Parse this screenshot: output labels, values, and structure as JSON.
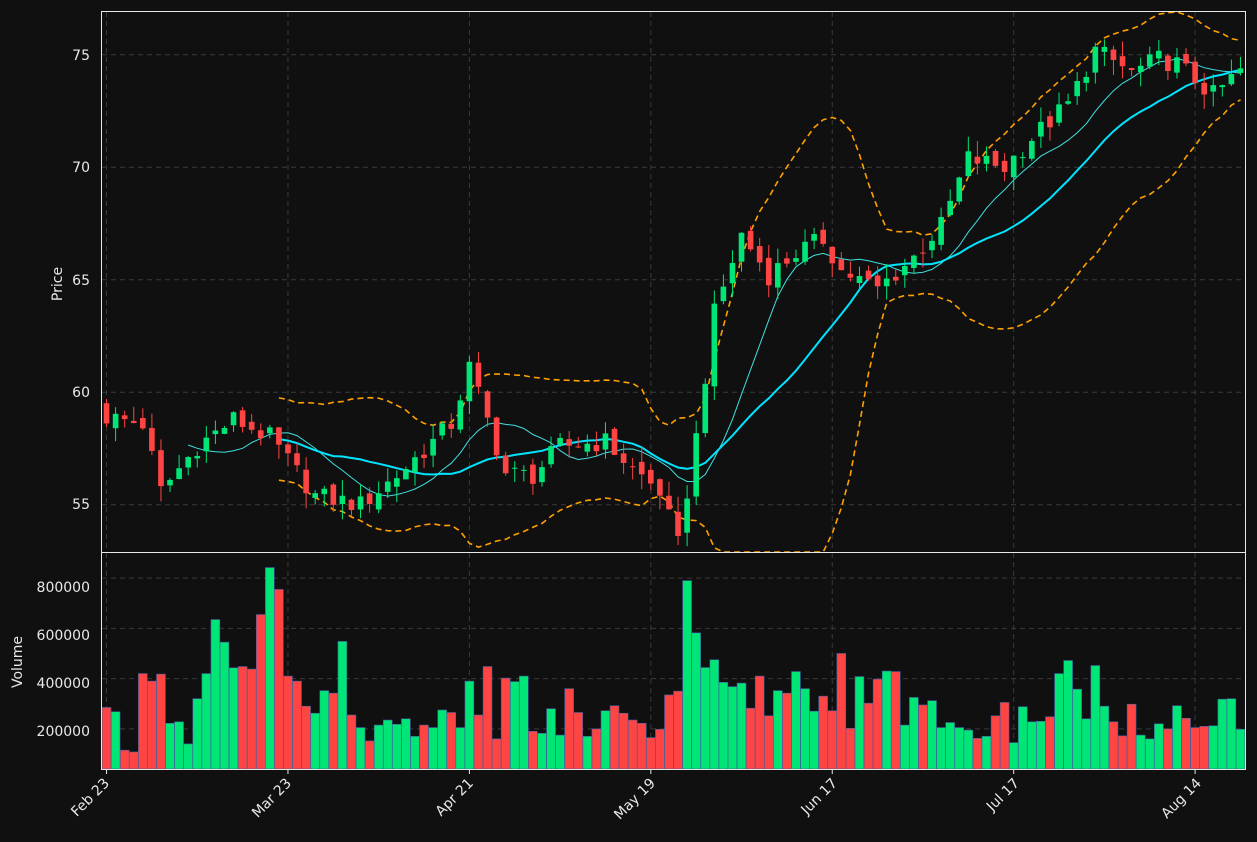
{
  "colors": {
    "background": "#101010",
    "grid": "#3a3a3a",
    "axis": "#e8e8e8",
    "up": "#00e676",
    "down": "#ff4444",
    "ma_fast": "#40e0e0",
    "ma_slow": "#00e5ff",
    "bands": "#ffa000"
  },
  "chart_data": [
    {
      "type": "candlestick",
      "ylabel": "Price",
      "ylim": [
        52.9,
        76.9
      ],
      "yticks": [
        "55",
        "60",
        "65",
        "70",
        "75"
      ],
      "grid": true,
      "overlays": [
        "moving average (fast, thin)",
        "moving average (slow, thick)",
        "upper band",
        "lower band"
      ],
      "key_points": {
        "start_close": 58.9,
        "feb_low": 55.4,
        "apr_high": 61.1,
        "may_low": 53.2,
        "jun_high": 67.2,
        "aug_high": 75.5,
        "end_close": 73.8
      }
    },
    {
      "type": "bar",
      "ylabel": "Volume",
      "ylim": [
        40000,
        900000
      ],
      "yticks": [
        "200000",
        "400000",
        "600000",
        "800000"
      ],
      "grid": true,
      "volumes": [
        285000,
        268000,
        115000,
        108000,
        420000,
        390000,
        418000,
        222000,
        228000,
        140000,
        320000,
        420000,
        635000,
        545000,
        443000,
        448000,
        438000,
        655000,
        842000,
        755000,
        410000,
        390000,
        290000,
        262000,
        352000,
        342000,
        548000,
        255000,
        205000,
        152000,
        215000,
        235000,
        218000,
        240000,
        170000,
        215000,
        205000,
        275000,
        265000,
        205000,
        390000,
        255000,
        448000,
        160000,
        402000,
        388000,
        410000,
        190000,
        182000,
        280000,
        175000,
        360000,
        265000,
        170000,
        200000,
        272000,
        292000,
        262000,
        235000,
        222000,
        165000,
        198000,
        335000,
        350000,
        790000,
        582000,
        444000,
        475000,
        385000,
        368000,
        382000,
        282000,
        410000,
        252000,
        352000,
        342000,
        428000,
        360000,
        270000,
        330000,
        272000,
        500000,
        202000,
        408000,
        302000,
        398000,
        430000,
        428000,
        215000,
        325000,
        295000,
        312000,
        205000,
        225000,
        205000,
        195000,
        162000,
        170000,
        252000,
        305000,
        145000,
        288000,
        228000,
        230000,
        248000,
        420000,
        472000,
        358000,
        240000,
        452000,
        290000,
        228000,
        172000,
        298000,
        175000,
        160000,
        220000,
        200000,
        292000,
        242000,
        205000,
        210000,
        212000,
        318000,
        320000,
        198000
      ]
    }
  ],
  "xaxis": {
    "ticks": [
      "Feb 23",
      "Mar 23",
      "Apr 21",
      "May 19",
      "Jun 17",
      "Jul 17",
      "Aug 14"
    ]
  }
}
